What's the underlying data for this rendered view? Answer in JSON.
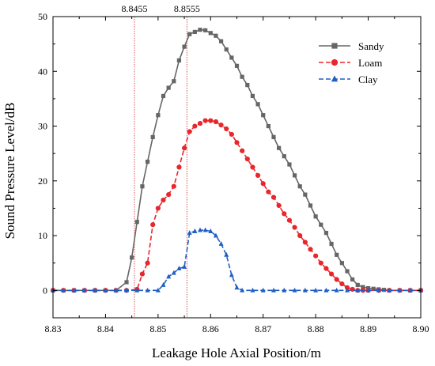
{
  "chart_data": {
    "type": "line",
    "xlabel": "Leakage Hole Axial Position/m",
    "ylabel": "Sound Pressure Level/dB",
    "xlim": [
      8.83,
      8.9
    ],
    "ylim": [
      -5,
      50
    ],
    "x_ticks": [
      "8.83",
      "8.84",
      "8.85",
      "8.86",
      "8.87",
      "8.88",
      "8.89",
      "8.90"
    ],
    "y_ticks": [
      "0",
      "10",
      "20",
      "30",
      "40",
      "50"
    ],
    "grid": false,
    "legend_position": "top-right",
    "reference_lines": [
      {
        "x": 8.8455,
        "label": "8.8455",
        "color": "#d9534f"
      },
      {
        "x": 8.8555,
        "label": "8.8555",
        "color": "#d9534f"
      }
    ],
    "series": [
      {
        "name": "Sandy",
        "color": "#666666",
        "line_style": "solid",
        "marker": "square",
        "x": [
          8.83,
          8.832,
          8.834,
          8.836,
          8.838,
          8.84,
          8.842,
          8.844,
          8.845,
          8.846,
          8.847,
          8.848,
          8.849,
          8.85,
          8.851,
          8.852,
          8.853,
          8.854,
          8.855,
          8.856,
          8.857,
          8.858,
          8.859,
          8.86,
          8.861,
          8.862,
          8.863,
          8.864,
          8.865,
          8.866,
          8.867,
          8.868,
          8.869,
          8.87,
          8.871,
          8.872,
          8.873,
          8.874,
          8.875,
          8.876,
          8.877,
          8.878,
          8.879,
          8.88,
          8.881,
          8.882,
          8.883,
          8.884,
          8.885,
          8.886,
          8.887,
          8.888,
          8.889,
          8.89,
          8.891,
          8.892,
          8.893,
          8.894,
          8.896,
          8.898,
          8.9
        ],
        "y": [
          0,
          0,
          0,
          0,
          0,
          0,
          0,
          1.5,
          6.0,
          12.5,
          19.0,
          23.5,
          28.0,
          32.0,
          35.5,
          37.0,
          38.2,
          42.0,
          44.5,
          46.8,
          47.2,
          47.6,
          47.5,
          47.0,
          46.5,
          45.5,
          44.0,
          42.5,
          41.0,
          39.0,
          37.5,
          35.5,
          34.0,
          32.0,
          30.0,
          28.0,
          26.0,
          24.5,
          23.0,
          21.0,
          19.0,
          17.5,
          15.5,
          13.5,
          12.0,
          10.5,
          8.5,
          6.5,
          5.0,
          3.5,
          2.0,
          1.0,
          0.6,
          0.4,
          0.3,
          0.2,
          0.1,
          0,
          0,
          0,
          0
        ]
      },
      {
        "name": "Loam",
        "color": "#e8262b",
        "line_style": "dashed",
        "marker": "circle",
        "x": [
          8.83,
          8.832,
          8.834,
          8.836,
          8.838,
          8.84,
          8.842,
          8.844,
          8.846,
          8.847,
          8.848,
          8.849,
          8.85,
          8.851,
          8.852,
          8.853,
          8.854,
          8.855,
          8.856,
          8.857,
          8.858,
          8.859,
          8.86,
          8.861,
          8.862,
          8.863,
          8.864,
          8.865,
          8.866,
          8.867,
          8.868,
          8.869,
          8.87,
          8.871,
          8.872,
          8.873,
          8.874,
          8.875,
          8.876,
          8.877,
          8.878,
          8.879,
          8.88,
          8.881,
          8.882,
          8.883,
          8.884,
          8.885,
          8.886,
          8.887,
          8.888,
          8.889,
          8.89,
          8.892,
          8.894,
          8.896,
          8.898,
          8.9
        ],
        "y": [
          0,
          0,
          0,
          0,
          0,
          0,
          0,
          0,
          0.2,
          3.0,
          5.0,
          12.0,
          15.0,
          16.5,
          17.5,
          19.0,
          22.5,
          26.0,
          29.0,
          30.0,
          30.5,
          31.0,
          31.0,
          30.8,
          30.2,
          29.5,
          28.5,
          27.0,
          25.5,
          24.0,
          22.5,
          21.0,
          19.5,
          18.0,
          17.0,
          15.5,
          14.0,
          12.8,
          11.5,
          10.0,
          8.8,
          7.5,
          6.3,
          5.0,
          4.0,
          3.0,
          2.0,
          1.2,
          0.5,
          0.2,
          0,
          0,
          0,
          0,
          0,
          0,
          0,
          0
        ]
      },
      {
        "name": "Clay",
        "color": "#1f5fc4",
        "line_style": "dashed",
        "marker": "triangle",
        "x": [
          8.83,
          8.832,
          8.834,
          8.836,
          8.838,
          8.84,
          8.842,
          8.844,
          8.846,
          8.848,
          8.85,
          8.851,
          8.852,
          8.853,
          8.854,
          8.855,
          8.856,
          8.857,
          8.858,
          8.859,
          8.86,
          8.861,
          8.862,
          8.863,
          8.864,
          8.865,
          8.866,
          8.868,
          8.87,
          8.872,
          8.874,
          8.876,
          8.878,
          8.88,
          8.882,
          8.884,
          8.886,
          8.888,
          8.89,
          8.892,
          8.894,
          8.896,
          8.898,
          8.9
        ],
        "y": [
          0,
          0,
          0,
          0,
          0,
          0,
          0,
          0,
          0,
          0,
          0,
          1.0,
          2.5,
          3.2,
          4.0,
          4.3,
          10.5,
          10.8,
          11.0,
          11.0,
          10.8,
          10.0,
          8.5,
          6.5,
          2.8,
          0.5,
          0,
          0,
          0,
          0,
          0,
          0,
          0,
          0,
          0,
          0,
          0,
          0,
          0,
          0,
          0,
          0,
          0,
          0
        ]
      }
    ]
  }
}
